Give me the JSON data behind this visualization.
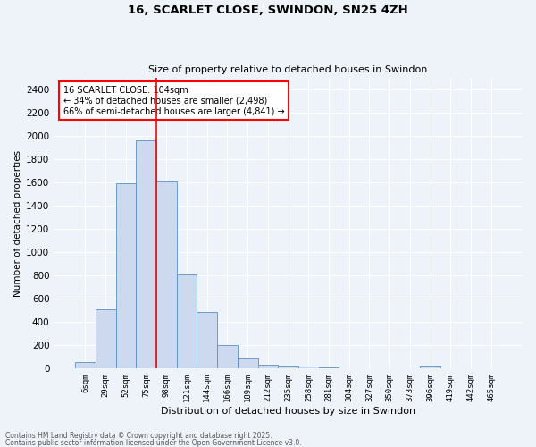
{
  "title1": "16, SCARLET CLOSE, SWINDON, SN25 4ZH",
  "title2": "Size of property relative to detached houses in Swindon",
  "xlabel": "Distribution of detached houses by size in Swindon",
  "ylabel": "Number of detached properties",
  "bar_labels": [
    "6sqm",
    "29sqm",
    "52sqm",
    "75sqm",
    "98sqm",
    "121sqm",
    "144sqm",
    "166sqm",
    "189sqm",
    "212sqm",
    "235sqm",
    "258sqm",
    "281sqm",
    "304sqm",
    "327sqm",
    "350sqm",
    "373sqm",
    "396sqm",
    "419sqm",
    "442sqm",
    "465sqm"
  ],
  "bar_values": [
    55,
    510,
    1590,
    1960,
    1610,
    810,
    485,
    200,
    85,
    35,
    25,
    18,
    10,
    5,
    0,
    0,
    0,
    22,
    0,
    0,
    0
  ],
  "bar_color": "#ccd9ee",
  "bar_edge_color": "#5a8fc5",
  "vline_x_index": 4,
  "vline_color": "red",
  "annotation_text": "16 SCARLET CLOSE: 104sqm\n← 34% of detached houses are smaller (2,498)\n66% of semi-detached houses are larger (4,841) →",
  "annotation_box_color": "white",
  "annotation_box_edge": "red",
  "ylim": [
    0,
    2500
  ],
  "yticks": [
    0,
    200,
    400,
    600,
    800,
    1000,
    1200,
    1400,
    1600,
    1800,
    2000,
    2200,
    2400
  ],
  "footer1": "Contains HM Land Registry data © Crown copyright and database right 2025.",
  "footer2": "Contains public sector information licensed under the Open Government Licence v3.0.",
  "bg_color": "#eef2f9",
  "grid_color": "white"
}
